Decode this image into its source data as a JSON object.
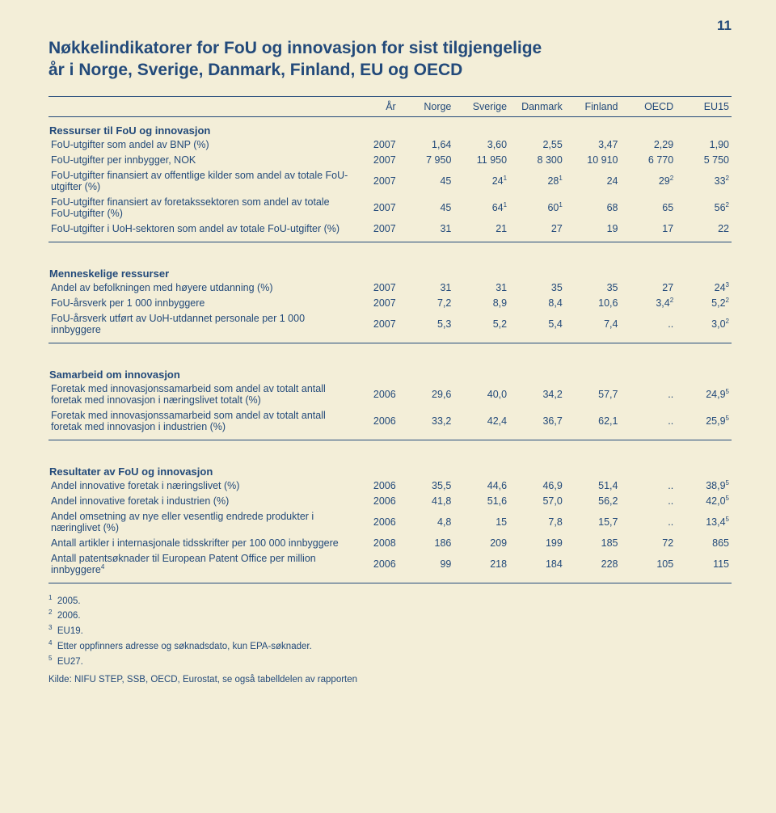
{
  "page_number": "11",
  "title_line1": "Nøkkelindikatorer for FoU og innovasjon for sist tilgjengelige",
  "title_line2": "år i Norge, Sverige, Danmark, Finland, EU og OECD",
  "columns": [
    "År",
    "Norge",
    "Sverige",
    "Danmark",
    "Finland",
    "OECD",
    "EU15"
  ],
  "sections": [
    {
      "title": "Ressurser til FoU og innovasjon",
      "rows": [
        {
          "label": "FoU-utgifter som andel av BNP (%)",
          "year": "2007",
          "v": [
            "1,64",
            "3,60",
            "2,55",
            "3,47",
            "2,29",
            "1,90"
          ]
        },
        {
          "label": "FoU-utgifter per innbygger, NOK",
          "year": "2007",
          "v": [
            "7 950",
            "11 950",
            "8 300",
            "10 910",
            "6 770",
            "5 750"
          ]
        },
        {
          "label": "FoU-utgifter finansiert av offentlige kilder som andel av totale FoU-utgifter (%)",
          "year": "2007",
          "v": [
            "45",
            "24<sup>1</sup>",
            "28<sup>1</sup>",
            "24",
            "29<sup>2</sup>",
            "33<sup>2</sup>"
          ]
        },
        {
          "label": "FoU-utgifter finansiert av foretakssektoren som andel av totale FoU-utgifter (%)",
          "year": "2007",
          "v": [
            "45",
            "64<sup>1</sup>",
            "60<sup>1</sup>",
            "68",
            "65",
            "56<sup>2</sup>"
          ]
        },
        {
          "label": "FoU-utgifter i UoH-sektoren som andel av totale FoU-utgifter (%)",
          "year": "2007",
          "v": [
            "31",
            "21",
            "27",
            "19",
            "17",
            "22"
          ]
        }
      ]
    },
    {
      "title": "Menneskelige ressurser",
      "rows": [
        {
          "label": "Andel av befolkningen med høyere utdanning (%)",
          "year": "2007",
          "v": [
            "31",
            "31",
            "35",
            "35",
            "27",
            "24<sup>3</sup>"
          ]
        },
        {
          "label": "FoU-årsverk per 1 000 innbyggere",
          "year": "2007",
          "v": [
            "7,2",
            "8,9",
            "8,4",
            "10,6",
            "3,4<sup>2</sup>",
            "5,2<sup>2</sup>"
          ]
        },
        {
          "label": "FoU-årsverk utført av UoH-utdannet personale per 1 000 innbyggere",
          "year": "2007",
          "v": [
            "5,3",
            "5,2",
            "5,4",
            "7,4",
            "..",
            "3,0<sup>2</sup>"
          ]
        }
      ]
    },
    {
      "title": "Samarbeid om innovasjon",
      "rows": [
        {
          "label": "Foretak med innovasjonssamarbeid som andel av totalt antall foretak med innovasjon i næringslivet totalt (%)",
          "year": "2006",
          "v": [
            "29,6",
            "40,0",
            "34,2",
            "57,7",
            "..",
            "24,9<sup>5</sup>"
          ]
        },
        {
          "label": "Foretak med innovasjonssamarbeid som andel av totalt antall foretak med innovasjon i industrien (%)",
          "year": "2006",
          "v": [
            "33,2",
            "42,4",
            "36,7",
            "62,1",
            "..",
            "25,9<sup>5</sup>"
          ]
        }
      ]
    },
    {
      "title": "Resultater av FoU og innovasjon",
      "rows": [
        {
          "label": "Andel innovative foretak i næringslivet (%)",
          "year": "2006",
          "v": [
            "35,5",
            "44,6",
            "46,9",
            "51,4",
            "..",
            "38,9<sup>5</sup>"
          ]
        },
        {
          "label": "Andel innovative foretak i industrien (%)",
          "year": "2006",
          "v": [
            "41,8",
            "51,6",
            "57,0",
            "56,2",
            "..",
            "42,0<sup>5</sup>"
          ]
        },
        {
          "label": "Andel omsetning av nye eller vesentlig endrede produkter i næringlivet (%)",
          "year": "2006",
          "v": [
            "4,8",
            "15",
            "7,8",
            "15,7",
            "..",
            "13,4<sup>5</sup>"
          ]
        },
        {
          "label": "Antall artikler i internasjonale tidsskrifter per 100 000 innbyggere",
          "year": "2008",
          "v": [
            "186",
            "209",
            "199",
            "185",
            "72",
            "865"
          ]
        },
        {
          "label": "Antall patentsøknader til European Patent Office per million innbyggere<sup>4</sup>",
          "year": "2006",
          "v": [
            "99",
            "218",
            "184",
            "228",
            "105",
            "115"
          ]
        }
      ]
    }
  ],
  "footnotes": [
    "<sup>1</sup>&nbsp;&nbsp;2005.",
    "<sup>2</sup>&nbsp;&nbsp;2006.",
    "<sup>3</sup>&nbsp;&nbsp;EU19.",
    "<sup>4</sup>&nbsp;&nbsp;Etter oppfinners adresse og søknadsdato, kun EPA-søknader.",
    "<sup>5</sup>&nbsp;&nbsp;EU27."
  ],
  "source": "Kilde: NIFU STEP, SSB, OECD, Eurostat, se også tabelldelen av rapporten"
}
